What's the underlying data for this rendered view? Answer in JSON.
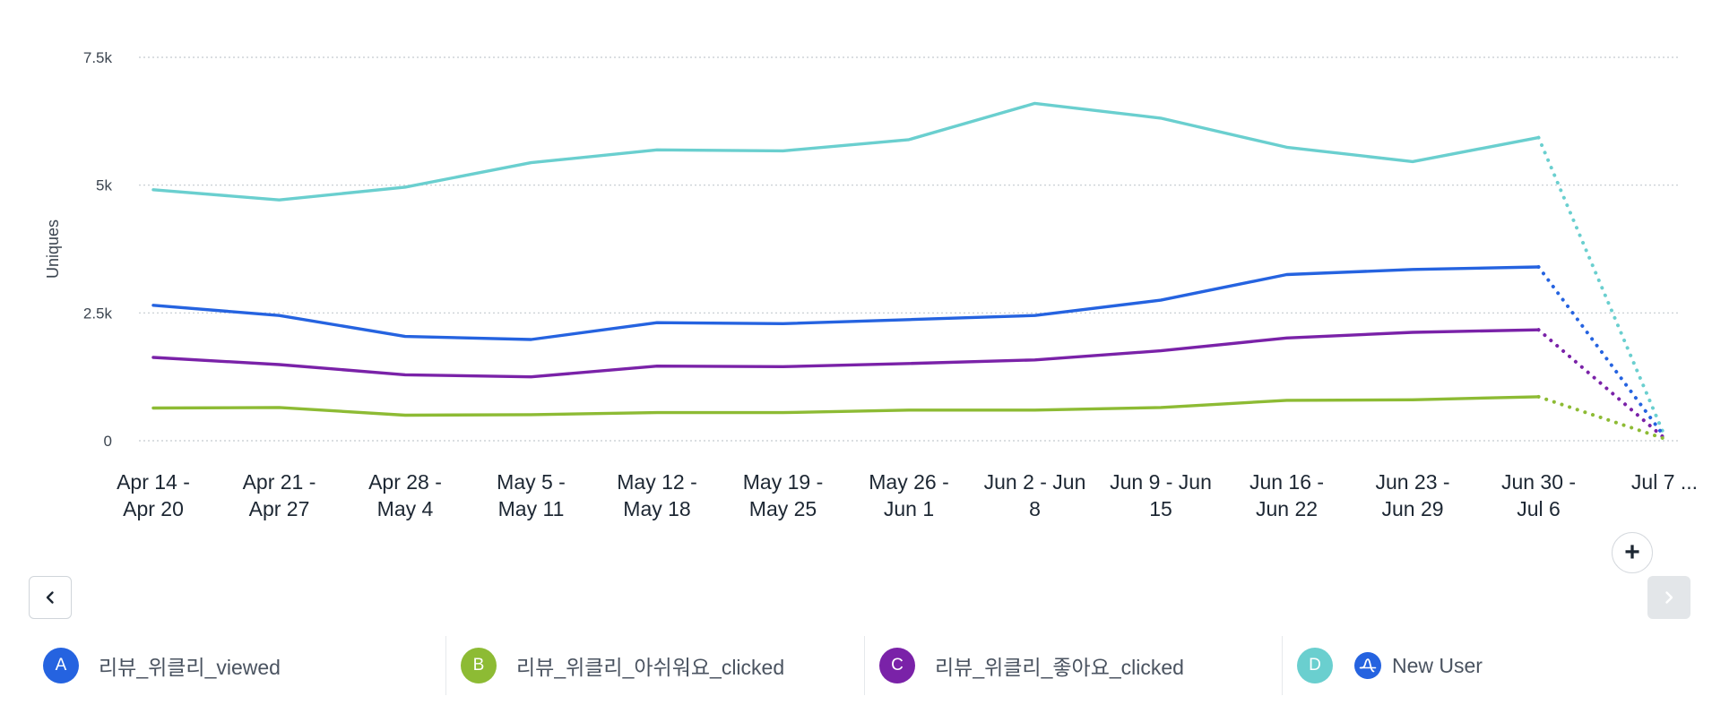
{
  "chart_data": {
    "type": "line",
    "ylabel": "Uniques",
    "ylim": [
      0,
      7500
    ],
    "y_ticks": [
      {
        "value": 0,
        "label": "0"
      },
      {
        "value": 2500,
        "label": "2.5k"
      },
      {
        "value": 5000,
        "label": "5k"
      },
      {
        "value": 7500,
        "label": "7.5k"
      }
    ],
    "categories": [
      "Apr 14 - Apr 20",
      "Apr 21 - Apr 27",
      "Apr 28 - May 4",
      "May 5 - May 11",
      "May 12 - May 18",
      "May 19 - May 25",
      "May 26 - Jun 1",
      "Jun 2 - Jun 8",
      "Jun 9 - Jun 15",
      "Jun 16 - Jun 22",
      "Jun 23 - Jun 29",
      "Jun 30 - Jul 6",
      "Jul 7 ..."
    ],
    "category_labels": [
      [
        "Apr 14 -",
        "Apr 20"
      ],
      [
        "Apr 21 -",
        "Apr 27"
      ],
      [
        "Apr 28 -",
        "May 4"
      ],
      [
        "May 5 -",
        "May 11"
      ],
      [
        "May 12 -",
        "May 18"
      ],
      [
        "May 19 -",
        "May 25"
      ],
      [
        "May 26 -",
        "Jun 1"
      ],
      [
        "Jun 2 - Jun",
        "8"
      ],
      [
        "Jun 9 - Jun",
        "15"
      ],
      [
        "Jun 16 -",
        "Jun 22"
      ],
      [
        "Jun 23 -",
        "Jun 29"
      ],
      [
        "Jun 30 -",
        "Jul 6"
      ],
      [
        "Jul 7 ...",
        ""
      ]
    ],
    "incomplete_last_period": true,
    "grid": "horizontal-dotted",
    "series": [
      {
        "name": "리뷰_위클리_viewed",
        "letter": "A",
        "color": "#2563e0",
        "values": [
          2650,
          2450,
          2040,
          1980,
          2310,
          2290,
          2370,
          2450,
          2750,
          3250,
          3350,
          3400,
          80
        ]
      },
      {
        "name": "리뷰_위클리_아쉬워요_clicked",
        "letter": "B",
        "color": "#8dbb34",
        "values": [
          640,
          650,
          500,
          510,
          550,
          550,
          600,
          600,
          650,
          790,
          800,
          860,
          40
        ]
      },
      {
        "name": "리뷰_위클리_좋아요_clicked",
        "letter": "C",
        "color": "#7a22a8",
        "values": [
          1630,
          1490,
          1290,
          1250,
          1460,
          1450,
          1510,
          1580,
          1760,
          2010,
          2120,
          2170,
          50
        ]
      },
      {
        "name": "New User",
        "letter": "D",
        "color": "#6acfcf",
        "values": [
          4910,
          4710,
          4960,
          5440,
          5690,
          5670,
          5890,
          6600,
          6310,
          5740,
          5460,
          5930,
          100
        ]
      }
    ]
  },
  "controls": {
    "add_label": "+"
  },
  "legend": {
    "cohort_icon": "amplitude-logo-icon",
    "cohort_icon_color": "#2563e0"
  }
}
